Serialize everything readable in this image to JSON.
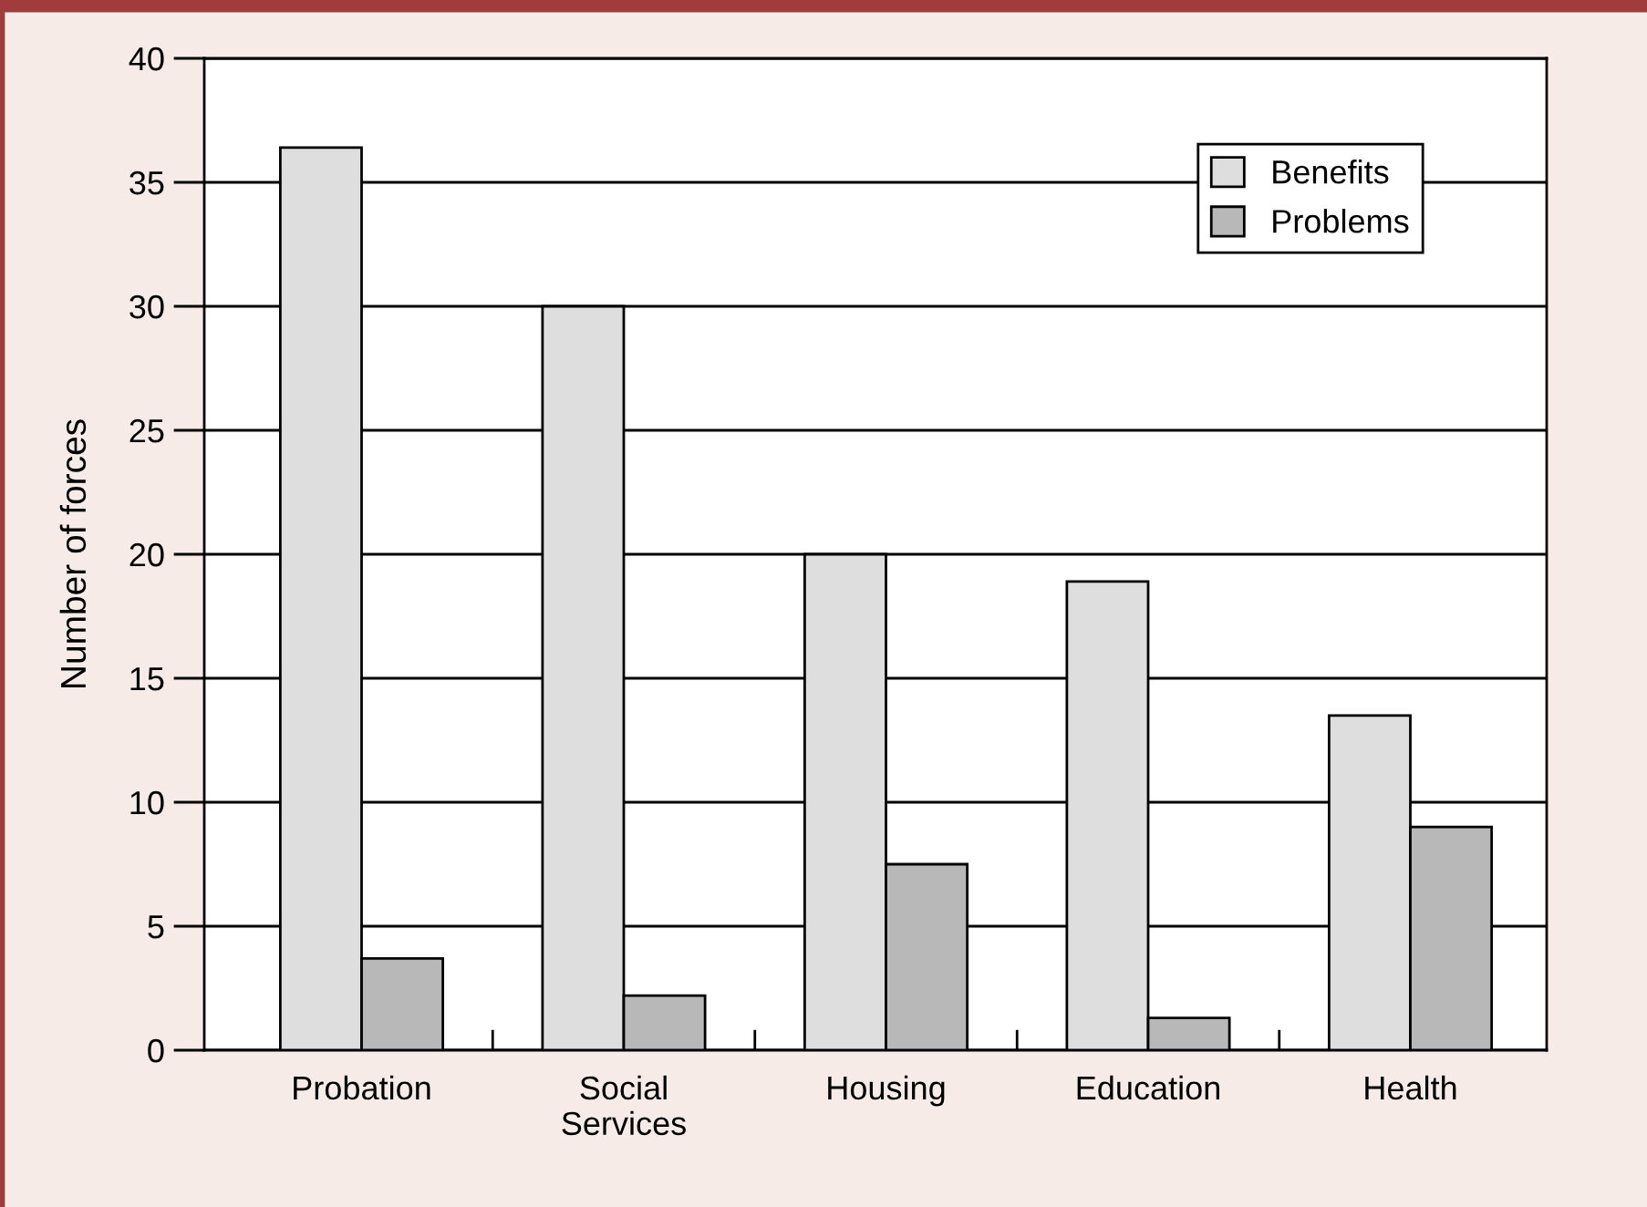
{
  "chart_data": {
    "type": "bar",
    "ylabel": "Number of forces",
    "categories": [
      "Probation",
      "Social\nServices",
      "Housing",
      "Education",
      "Health"
    ],
    "series": [
      {
        "name": "Benefits",
        "color": "#dedede",
        "values": [
          36.4,
          30,
          20,
          18.9,
          13.5
        ]
      },
      {
        "name": "Problems",
        "color": "#b8b8b8",
        "values": [
          3.7,
          2.2,
          7.5,
          1.3,
          9.0
        ]
      }
    ],
    "ylim": [
      0,
      40
    ],
    "yticks": [
      0,
      5,
      10,
      15,
      20,
      25,
      30,
      35,
      40
    ],
    "grid": "y",
    "legend": "top right"
  }
}
